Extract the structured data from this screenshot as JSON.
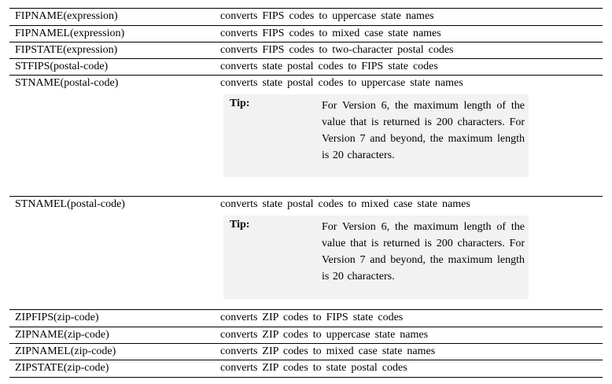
{
  "rows": [
    {
      "fn": "FIPNAME(expression)",
      "desc": "converts FIPS codes to uppercase state names"
    },
    {
      "fn": "FIPNAMEL(expression)",
      "desc": "converts FIPS codes to mixed case state names"
    },
    {
      "fn": "FIPSTATE(expression)",
      "desc": "converts FIPS codes to two-character postal codes"
    },
    {
      "fn": "STFIPS(postal-code)",
      "desc": "converts state postal codes to FIPS state codes"
    },
    {
      "fn": "STNAME(postal-code)",
      "desc": "converts state postal codes to uppercase state names",
      "tip_label": "Tip:",
      "tip_text": "For Version 6, the maximum length of the value that is returned is 200 characters. For Version 7 and beyond, the maximum length is 20 characters."
    },
    {
      "fn": "STNAMEL(postal-code)",
      "desc": "converts state postal codes to mixed case state names",
      "tip_label": "Tip:",
      "tip_text": "For Version 6, the maximum length of the value that is returned is 200 characters. For Version 7 and beyond, the maximum length is 20 characters."
    },
    {
      "fn": "ZIPFIPS(zip-code)",
      "desc": "converts ZIP codes to FIPS state codes"
    },
    {
      "fn": "ZIPNAME(zip-code)",
      "desc": "converts ZIP codes to uppercase state names"
    },
    {
      "fn": "ZIPNAMEL(zip-code)",
      "desc": "converts ZIP codes to mixed case state names"
    },
    {
      "fn": "ZIPSTATE(zip-code)",
      "desc": "converts ZIP codes to state postal codes"
    }
  ]
}
